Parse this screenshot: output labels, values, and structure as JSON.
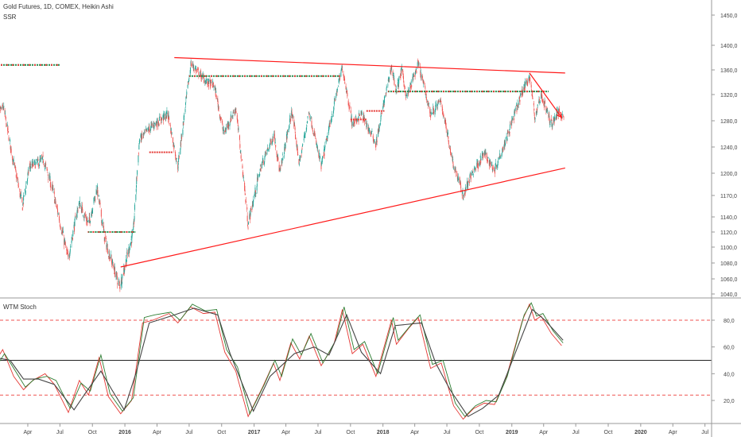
{
  "header": {
    "title": "Gold Futures, 1D, COMEX, Heikin Ashi",
    "indicator": "SSR"
  },
  "stoch_panel": {
    "title": "WTM Stoch"
  },
  "colors": {
    "up": "#26a69a",
    "down": "#ef5350",
    "trendline": "#ff1a1a",
    "ssr_green": "#1e8c4a",
    "ssr_red": "#e53935",
    "stoch_k": "#e53935",
    "stoch_d": "#2e7d32",
    "stoch_avg": "#444444",
    "level_line": "#ef5350",
    "mid_line": "#222222",
    "axis_text": "#444444",
    "grid": "#cccccc"
  },
  "chart_data": [
    {
      "type": "candlestick",
      "title": "Gold Futures, 1D, COMEX, Heikin Ashi",
      "ylim": [
        1040,
        1460
      ],
      "y_ticks": [
        "1450,0",
        "1400,0",
        "1360,0",
        "1320,0",
        "1280,0",
        "1240,0",
        "1200,0",
        "1170,0",
        "1140,0",
        "1120,0",
        "1100,0",
        "1080,0",
        "1060,0",
        "1040,0"
      ],
      "y_tick_values": [
        1450,
        1400,
        1360,
        1320,
        1280,
        1240,
        1200,
        1170,
        1140,
        1120,
        1100,
        1080,
        1060,
        1040
      ],
      "x_range": [
        "2015-01-01",
        "2020-07-31"
      ],
      "x_ticks": [
        {
          "label": "Apr",
          "date": "2015-04-01"
        },
        {
          "label": "Jul",
          "date": "2015-07-01"
        },
        {
          "label": "Oct",
          "date": "2015-10-01"
        },
        {
          "label": "2016",
          "date": "2016-01-01"
        },
        {
          "label": "Apr",
          "date": "2016-04-01"
        },
        {
          "label": "Jul",
          "date": "2016-07-01"
        },
        {
          "label": "Oct",
          "date": "2016-10-01"
        },
        {
          "label": "2017",
          "date": "2017-01-01"
        },
        {
          "label": "Apr",
          "date": "2017-04-01"
        },
        {
          "label": "Jul",
          "date": "2017-07-01"
        },
        {
          "label": "Oct",
          "date": "2017-10-01"
        },
        {
          "label": "2018",
          "date": "2018-01-01"
        },
        {
          "label": "Apr",
          "date": "2018-04-01"
        },
        {
          "label": "Jul",
          "date": "2018-07-01"
        },
        {
          "label": "Oct",
          "date": "2018-10-01"
        },
        {
          "label": "2019",
          "date": "2019-01-01"
        },
        {
          "label": "Apr",
          "date": "2019-04-01"
        },
        {
          "label": "Jul",
          "date": "2019-07-01"
        },
        {
          "label": "Oct",
          "date": "2019-10-01"
        },
        {
          "label": "2020",
          "date": "2020-01-01"
        },
        {
          "label": "Apr",
          "date": "2020-04-01"
        },
        {
          "label": "Jul",
          "date": "2020-07-01"
        }
      ],
      "price_path": [
        [
          "2015-01-01",
          1290
        ],
        [
          "2015-01-22",
          1300
        ],
        [
          "2015-02-20",
          1215
        ],
        [
          "2015-03-17",
          1155
        ],
        [
          "2015-04-06",
          1210
        ],
        [
          "2015-05-15",
          1220
        ],
        [
          "2015-06-10",
          1178
        ],
        [
          "2015-07-24",
          1085
        ],
        [
          "2015-08-24",
          1160
        ],
        [
          "2015-09-20",
          1130
        ],
        [
          "2015-10-14",
          1180
        ],
        [
          "2015-11-05",
          1110
        ],
        [
          "2015-12-17",
          1050
        ],
        [
          "2016-01-25",
          1120
        ],
        [
          "2016-02-11",
          1250
        ],
        [
          "2016-03-14",
          1270
        ],
        [
          "2016-05-02",
          1290
        ],
        [
          "2016-05-30",
          1210
        ],
        [
          "2016-07-06",
          1370
        ],
        [
          "2016-08-20",
          1340
        ],
        [
          "2016-09-10",
          1335
        ],
        [
          "2016-10-07",
          1260
        ],
        [
          "2016-11-10",
          1300
        ],
        [
          "2016-12-15",
          1130
        ],
        [
          "2017-01-20",
          1210
        ],
        [
          "2017-02-27",
          1260
        ],
        [
          "2017-03-15",
          1200
        ],
        [
          "2017-04-18",
          1295
        ],
        [
          "2017-05-09",
          1215
        ],
        [
          "2017-06-06",
          1295
        ],
        [
          "2017-07-10",
          1210
        ],
        [
          "2017-08-10",
          1290
        ],
        [
          "2017-09-08",
          1365
        ],
        [
          "2017-10-06",
          1275
        ],
        [
          "2017-11-01",
          1290
        ],
        [
          "2017-12-12",
          1245
        ],
        [
          "2018-01-25",
          1365
        ],
        [
          "2018-02-08",
          1325
        ],
        [
          "2018-02-23",
          1360
        ],
        [
          "2018-03-09",
          1315
        ],
        [
          "2018-04-11",
          1370
        ],
        [
          "2018-05-16",
          1290
        ],
        [
          "2018-06-14",
          1310
        ],
        [
          "2018-07-19",
          1215
        ],
        [
          "2018-08-16",
          1170
        ],
        [
          "2018-09-15",
          1205
        ],
        [
          "2018-10-15",
          1230
        ],
        [
          "2018-11-13",
          1205
        ],
        [
          "2018-12-14",
          1250
        ],
        [
          "2019-01-31",
          1325
        ],
        [
          "2019-02-20",
          1350
        ],
        [
          "2019-03-07",
          1285
        ],
        [
          "2019-03-25",
          1320
        ],
        [
          "2019-04-23",
          1275
        ],
        [
          "2019-05-14",
          1295
        ],
        [
          "2019-05-28",
          1285
        ]
      ],
      "trendlines": [
        {
          "name": "upper-resistance",
          "from": [
            "2016-05-20",
            1380
          ],
          "to": [
            "2019-06-01",
            1355
          ]
        },
        {
          "name": "lower-support",
          "from": [
            "2015-12-20",
            1075
          ],
          "to": [
            "2019-06-01",
            1208
          ]
        },
        {
          "name": "recent-decline-arrow",
          "from": [
            "2019-02-20",
            1355
          ],
          "to": [
            "2019-05-22",
            1285
          ]
        }
      ],
      "ssr_levels": [
        {
          "from": "2015-01-01",
          "to": "2015-06-30",
          "y": 1368,
          "color": "mixed"
        },
        {
          "from": "2015-09-18",
          "to": "2016-02-01",
          "y": 1120,
          "color": "mixed"
        },
        {
          "from": "2016-03-10",
          "to": "2016-05-15",
          "y": 1232,
          "color": "red"
        },
        {
          "from": "2016-07-01",
          "to": "2017-09-01",
          "y": 1350,
          "color": "mixed"
        },
        {
          "from": "2017-10-01",
          "to": "2017-11-15",
          "y": 1282,
          "color": "red"
        },
        {
          "from": "2017-11-15",
          "to": "2018-01-05",
          "y": 1295,
          "color": "red"
        },
        {
          "from": "2018-01-15",
          "to": "2019-04-15",
          "y": 1325,
          "color": "mixed"
        }
      ]
    },
    {
      "type": "line",
      "title": "WTM Stoch",
      "ylim": [
        5,
        95
      ],
      "y_ticks": [
        "80,0",
        "60,0",
        "40,0",
        "20,0"
      ],
      "y_tick_values": [
        80,
        60,
        40,
        20
      ],
      "levels": {
        "upper": 80,
        "middle": 50,
        "lower": 24
      },
      "series": [
        {
          "key": "k",
          "points": [
            [
              "2015-01-01",
              50
            ],
            [
              "2015-01-20",
              58
            ],
            [
              "2015-02-20",
              38
            ],
            [
              "2015-03-20",
              28
            ],
            [
              "2015-04-15",
              35
            ],
            [
              "2015-05-20",
              40
            ],
            [
              "2015-06-15",
              32
            ],
            [
              "2015-07-25",
              11
            ],
            [
              "2015-08-25",
              35
            ],
            [
              "2015-09-20",
              24
            ],
            [
              "2015-10-20",
              52
            ],
            [
              "2015-11-15",
              23
            ],
            [
              "2015-12-20",
              10
            ],
            [
              "2016-01-20",
              20
            ],
            [
              "2016-02-20",
              78
            ],
            [
              "2016-03-20",
              80
            ],
            [
              "2016-05-05",
              85
            ],
            [
              "2016-05-30",
              78
            ],
            [
              "2016-07-05",
              90
            ],
            [
              "2016-08-10",
              85
            ],
            [
              "2016-09-12",
              86
            ],
            [
              "2016-10-10",
              56
            ],
            [
              "2016-11-10",
              42
            ],
            [
              "2016-12-15",
              8
            ],
            [
              "2017-01-25",
              30
            ],
            [
              "2017-02-25",
              48
            ],
            [
              "2017-03-15",
              35
            ],
            [
              "2017-04-15",
              63
            ],
            [
              "2017-05-10",
              51
            ],
            [
              "2017-06-06",
              68
            ],
            [
              "2017-07-10",
              46
            ],
            [
              "2017-08-15",
              62
            ],
            [
              "2017-09-08",
              88
            ],
            [
              "2017-10-06",
              55
            ],
            [
              "2017-11-05",
              62
            ],
            [
              "2017-12-12",
              38
            ],
            [
              "2018-01-25",
              80
            ],
            [
              "2018-02-08",
              62
            ],
            [
              "2018-03-15",
              74
            ],
            [
              "2018-04-11",
              82
            ],
            [
              "2018-05-16",
              44
            ],
            [
              "2018-06-15",
              48
            ],
            [
              "2018-07-20",
              16
            ],
            [
              "2018-08-16",
              6
            ],
            [
              "2018-09-15",
              14
            ],
            [
              "2018-10-15",
              18
            ],
            [
              "2018-11-13",
              17
            ],
            [
              "2018-12-14",
              35
            ],
            [
              "2019-01-31",
              80
            ],
            [
              "2019-02-20",
              92
            ],
            [
              "2019-03-07",
              80
            ],
            [
              "2019-03-25",
              83
            ],
            [
              "2019-04-23",
              70
            ],
            [
              "2019-05-22",
              61
            ]
          ]
        },
        {
          "key": "d",
          "points": [
            [
              "2015-01-01",
              45
            ],
            [
              "2015-01-25",
              55
            ],
            [
              "2015-02-25",
              42
            ],
            [
              "2015-03-25",
              30
            ],
            [
              "2015-04-20",
              36
            ],
            [
              "2015-05-25",
              38
            ],
            [
              "2015-06-20",
              35
            ],
            [
              "2015-07-30",
              14
            ],
            [
              "2015-08-30",
              33
            ],
            [
              "2015-09-25",
              27
            ],
            [
              "2015-10-25",
              54
            ],
            [
              "2015-11-20",
              25
            ],
            [
              "2015-12-25",
              12
            ],
            [
              "2016-01-25",
              22
            ],
            [
              "2016-02-25",
              82
            ],
            [
              "2016-03-25",
              84
            ],
            [
              "2016-05-10",
              86
            ],
            [
              "2016-06-05",
              80
            ],
            [
              "2016-07-10",
              92
            ],
            [
              "2016-08-15",
              87
            ],
            [
              "2016-09-17",
              88
            ],
            [
              "2016-10-15",
              58
            ],
            [
              "2016-11-15",
              45
            ],
            [
              "2016-12-20",
              10
            ],
            [
              "2017-01-30",
              32
            ],
            [
              "2017-03-01",
              50
            ],
            [
              "2017-03-20",
              38
            ],
            [
              "2017-04-20",
              66
            ],
            [
              "2017-05-15",
              54
            ],
            [
              "2017-06-11",
              70
            ],
            [
              "2017-07-15",
              48
            ],
            [
              "2017-08-20",
              65
            ],
            [
              "2017-09-13",
              90
            ],
            [
              "2017-10-11",
              58
            ],
            [
              "2017-11-10",
              64
            ],
            [
              "2017-12-17",
              40
            ],
            [
              "2018-01-30",
              82
            ],
            [
              "2018-02-13",
              65
            ],
            [
              "2018-03-20",
              76
            ],
            [
              "2018-04-16",
              84
            ],
            [
              "2018-05-21",
              47
            ],
            [
              "2018-06-20",
              50
            ],
            [
              "2018-07-25",
              18
            ],
            [
              "2018-08-21",
              8
            ],
            [
              "2018-09-20",
              16
            ],
            [
              "2018-10-20",
              20
            ],
            [
              "2018-11-18",
              19
            ],
            [
              "2018-12-19",
              38
            ],
            [
              "2019-02-05",
              84
            ],
            [
              "2019-02-25",
              93
            ],
            [
              "2019-03-12",
              83
            ],
            [
              "2019-03-30",
              85
            ],
            [
              "2019-04-28",
              72
            ],
            [
              "2019-05-26",
              63
            ]
          ]
        },
        {
          "key": "avg",
          "points": [
            [
              "2015-01-01",
              52
            ],
            [
              "2015-02-10",
              50
            ],
            [
              "2015-03-20",
              36
            ],
            [
              "2015-05-01",
              36
            ],
            [
              "2015-06-15",
              32
            ],
            [
              "2015-08-10",
              13
            ],
            [
              "2015-09-10",
              25
            ],
            [
              "2015-10-25",
              42
            ],
            [
              "2015-11-25",
              28
            ],
            [
              "2015-12-30",
              13
            ],
            [
              "2016-02-01",
              40
            ],
            [
              "2016-03-10",
              78
            ],
            [
              "2016-05-10",
              83
            ],
            [
              "2016-07-15",
              89
            ],
            [
              "2016-09-20",
              84
            ],
            [
              "2016-10-25",
              55
            ],
            [
              "2016-12-30",
              12
            ],
            [
              "2017-02-15",
              38
            ],
            [
              "2017-04-25",
              55
            ],
            [
              "2017-06-20",
              60
            ],
            [
              "2017-08-01",
              54
            ],
            [
              "2017-09-20",
              84
            ],
            [
              "2017-11-01",
              56
            ],
            [
              "2017-12-25",
              40
            ],
            [
              "2018-02-05",
              76
            ],
            [
              "2018-04-20",
              78
            ],
            [
              "2018-05-30",
              48
            ],
            [
              "2018-07-10",
              28
            ],
            [
              "2018-08-30",
              8
            ],
            [
              "2018-10-10",
              14
            ],
            [
              "2018-11-25",
              24
            ],
            [
              "2019-01-10",
              55
            ],
            [
              "2019-02-28",
              88
            ],
            [
              "2019-04-05",
              80
            ],
            [
              "2019-05-26",
              65
            ]
          ]
        }
      ]
    }
  ]
}
